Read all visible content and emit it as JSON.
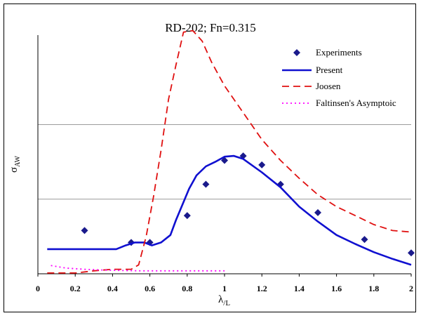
{
  "chart_data": {
    "type": "line",
    "title": "RD-202; Fn=0.315",
    "xlabel_main": "λ",
    "xlabel_sub": "/L",
    "ylabel_main": "σ",
    "ylabel_sub": "AW",
    "xlim": [
      0,
      2
    ],
    "ylim": [
      0,
      16
    ],
    "x_ticks": [
      "0",
      "0.2",
      "0.4",
      "0.6",
      "0.8",
      "1",
      "1.2",
      "1.4",
      "1.6",
      "1.8",
      "2"
    ],
    "x_tick_values": [
      0,
      0.2,
      0.4,
      0.6,
      0.8,
      1.0,
      1.2,
      1.4,
      1.6,
      1.8,
      2.0
    ],
    "y_gridlines": [
      5,
      10
    ],
    "legend_position": "top-right",
    "series": [
      {
        "name": "Experiments",
        "kind": "scatter",
        "color": "#1a1a8c",
        "points": [
          [
            0.25,
            2.9
          ],
          [
            0.5,
            2.1
          ],
          [
            0.6,
            2.1
          ],
          [
            0.8,
            3.9
          ],
          [
            0.9,
            6.0
          ],
          [
            1.0,
            7.6
          ],
          [
            1.1,
            7.9
          ],
          [
            1.2,
            7.3
          ],
          [
            1.3,
            6.0
          ],
          [
            1.5,
            4.1
          ],
          [
            1.75,
            2.3
          ],
          [
            2.0,
            1.4
          ]
        ]
      },
      {
        "name": "Present",
        "kind": "line",
        "color": "#1010d0",
        "points": [
          [
            0.05,
            1.65
          ],
          [
            0.2,
            1.65
          ],
          [
            0.31,
            1.65
          ],
          [
            0.42,
            1.65
          ],
          [
            0.47,
            1.9
          ],
          [
            0.52,
            2.1
          ],
          [
            0.57,
            2.1
          ],
          [
            0.61,
            1.9
          ],
          [
            0.66,
            2.1
          ],
          [
            0.71,
            2.6
          ],
          [
            0.74,
            3.6
          ],
          [
            0.78,
            4.8
          ],
          [
            0.81,
            5.7
          ],
          [
            0.85,
            6.6
          ],
          [
            0.9,
            7.2
          ],
          [
            0.95,
            7.5
          ],
          [
            1.0,
            7.85
          ],
          [
            1.05,
            7.9
          ],
          [
            1.1,
            7.7
          ],
          [
            1.2,
            6.8
          ],
          [
            1.3,
            5.8
          ],
          [
            1.4,
            4.5
          ],
          [
            1.5,
            3.5
          ],
          [
            1.6,
            2.6
          ],
          [
            1.7,
            2.0
          ],
          [
            1.8,
            1.45
          ],
          [
            1.9,
            1.0
          ],
          [
            2.0,
            0.6
          ]
        ]
      },
      {
        "name": "Joosen",
        "kind": "dashed",
        "color": "#e01010",
        "points": [
          [
            0.05,
            0.05
          ],
          [
            0.2,
            0.05
          ],
          [
            0.3,
            0.2
          ],
          [
            0.4,
            0.3
          ],
          [
            0.5,
            0.3
          ],
          [
            0.54,
            0.6
          ],
          [
            0.58,
            2.5
          ],
          [
            0.62,
            5.2
          ],
          [
            0.66,
            8.3
          ],
          [
            0.7,
            11.7
          ],
          [
            0.74,
            14.0
          ],
          [
            0.78,
            16.2
          ],
          [
            0.83,
            16.3
          ],
          [
            0.88,
            15.6
          ],
          [
            0.93,
            14.2
          ],
          [
            1.0,
            12.6
          ],
          [
            1.1,
            10.8
          ],
          [
            1.2,
            9.0
          ],
          [
            1.3,
            7.6
          ],
          [
            1.4,
            6.4
          ],
          [
            1.5,
            5.3
          ],
          [
            1.6,
            4.5
          ],
          [
            1.7,
            3.9
          ],
          [
            1.8,
            3.3
          ],
          [
            1.9,
            2.9
          ],
          [
            2.0,
            2.8
          ]
        ]
      },
      {
        "name": "Faltinsen's Asymptoic",
        "kind": "dotted",
        "color": "#ff00ff",
        "points": [
          [
            0.07,
            0.55
          ],
          [
            0.15,
            0.38
          ],
          [
            0.25,
            0.3
          ],
          [
            0.35,
            0.25
          ],
          [
            0.45,
            0.22
          ],
          [
            0.55,
            0.2
          ],
          [
            0.65,
            0.2
          ],
          [
            0.75,
            0.2
          ],
          [
            0.85,
            0.2
          ],
          [
            1.0,
            0.2
          ]
        ]
      }
    ]
  }
}
